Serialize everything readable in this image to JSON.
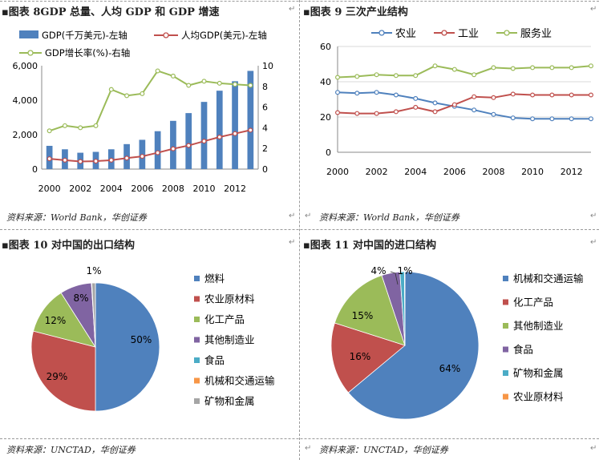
{
  "panels": {
    "p8": {
      "title": "▪图表 8GDP 总量、人均 GDP 和 GDP 增速",
      "source": "资料来源：World Bank，华创证券"
    },
    "p9": {
      "title": "▪图表 9 三次产业结构",
      "source": "资料来源：World Bank，华创证券"
    },
    "p10": {
      "title": "▪图表 10 对中国的出口结构",
      "source": "资料来源：UNCTAD，华创证券"
    },
    "p11": {
      "title": "▪图表 11 对中国的进口结构",
      "source": "资料来源：UNCTAD，华创证券"
    }
  },
  "chart_data": [
    {
      "id": "gdp",
      "type": "bar",
      "years": [
        2000,
        2001,
        2002,
        2003,
        2004,
        2005,
        2006,
        2007,
        2008,
        2009,
        2010,
        2011,
        2012,
        2013
      ],
      "x_ticks": [
        "2000",
        "2002",
        "2004",
        "2006",
        "2008",
        "2010",
        "2012"
      ],
      "left_axis": {
        "ylim": [
          0,
          6000
        ],
        "ticks": [
          "0",
          "2,000",
          "4,000",
          "6,000"
        ]
      },
      "right_axis": {
        "ylim": [
          0,
          10
        ],
        "ticks": [
          "0",
          "2",
          "4",
          "6",
          "8",
          "10"
        ]
      },
      "series": [
        {
          "name": "GDP(千万美元)-左轴",
          "kind": "bar",
          "axis": "left",
          "color": "#4f81bd",
          "values": [
            1350,
            1150,
            950,
            1000,
            1150,
            1450,
            1700,
            2200,
            2800,
            3250,
            3900,
            4550,
            5100,
            5700
          ]
        },
        {
          "name": "人均GDP(美元)-左轴",
          "kind": "line",
          "axis": "left",
          "color": "#c0504d",
          "values": [
            600,
            520,
            440,
            460,
            520,
            640,
            740,
            950,
            1180,
            1370,
            1620,
            1860,
            2060,
            2260
          ]
        },
        {
          "name": "GDP增长率(%)-右轴",
          "kind": "line",
          "axis": "right",
          "color": "#9bbb59",
          "values": [
            3.7,
            4.2,
            4.0,
            4.2,
            7.7,
            7.1,
            7.3,
            9.5,
            9.0,
            8.1,
            8.5,
            8.3,
            8.2,
            8.1
          ]
        }
      ]
    },
    {
      "id": "industry",
      "type": "line",
      "x": [
        2000,
        2001,
        2002,
        2003,
        2004,
        2005,
        2006,
        2007,
        2008,
        2009,
        2010,
        2011,
        2012,
        2013
      ],
      "x_ticks": [
        "2000",
        "2002",
        "2004",
        "2006",
        "2008",
        "2010",
        "2012"
      ],
      "ylim": [
        0,
        60
      ],
      "y_ticks": [
        "0",
        "20",
        "40",
        "60"
      ],
      "series": [
        {
          "name": "农业",
          "color": "#4f81bd",
          "values": [
            34,
            33.5,
            34,
            32.5,
            30.5,
            28,
            26,
            24,
            21.5,
            19.5,
            19,
            19,
            19,
            19
          ]
        },
        {
          "name": "工业",
          "color": "#c0504d",
          "values": [
            22.5,
            22,
            22,
            23,
            25.5,
            23,
            27,
            31.5,
            31,
            33,
            32.5,
            32.5,
            32.5,
            32.5
          ]
        },
        {
          "name": "服务业",
          "color": "#9bbb59",
          "values": [
            42.5,
            43,
            44,
            43.5,
            43.5,
            49,
            47,
            44,
            48,
            47.5,
            48,
            48,
            48,
            49
          ]
        }
      ]
    },
    {
      "id": "export",
      "type": "pie",
      "slices": [
        {
          "label": "燃料",
          "value": 50,
          "text": "50%",
          "color": "#4f81bd"
        },
        {
          "label": "农业原材料",
          "value": 29,
          "text": "29%",
          "color": "#c0504d"
        },
        {
          "label": "化工产品",
          "value": 12,
          "text": "12%",
          "color": "#9bbb59"
        },
        {
          "label": "其他制造业",
          "value": 8,
          "text": "8%",
          "color": "#8064a2"
        },
        {
          "label": "食品",
          "value": 0.05,
          "text": "",
          "color": "#4bacc6"
        },
        {
          "label": "机械和交通运输",
          "value": 0.05,
          "text": "",
          "color": "#f79646"
        },
        {
          "label": "矿物和金属",
          "value": 0.9,
          "text": "1%",
          "color": "#a5a5a5"
        }
      ]
    },
    {
      "id": "import",
      "type": "pie",
      "slices": [
        {
          "label": "机械和交通运输",
          "value": 64,
          "text": "64%",
          "color": "#4f81bd"
        },
        {
          "label": "化工产品",
          "value": 16,
          "text": "16%",
          "color": "#c0504d"
        },
        {
          "label": "其他制造业",
          "value": 15,
          "text": "15%",
          "color": "#9bbb59"
        },
        {
          "label": "食品",
          "value": 4,
          "text": "4%",
          "color": "#8064a2"
        },
        {
          "label": "矿物和金属",
          "value": 1,
          "text": "1%",
          "color": "#4bacc6"
        },
        {
          "label": "农业原材料",
          "value": 0.1,
          "text": "",
          "color": "#f79646"
        }
      ]
    }
  ]
}
